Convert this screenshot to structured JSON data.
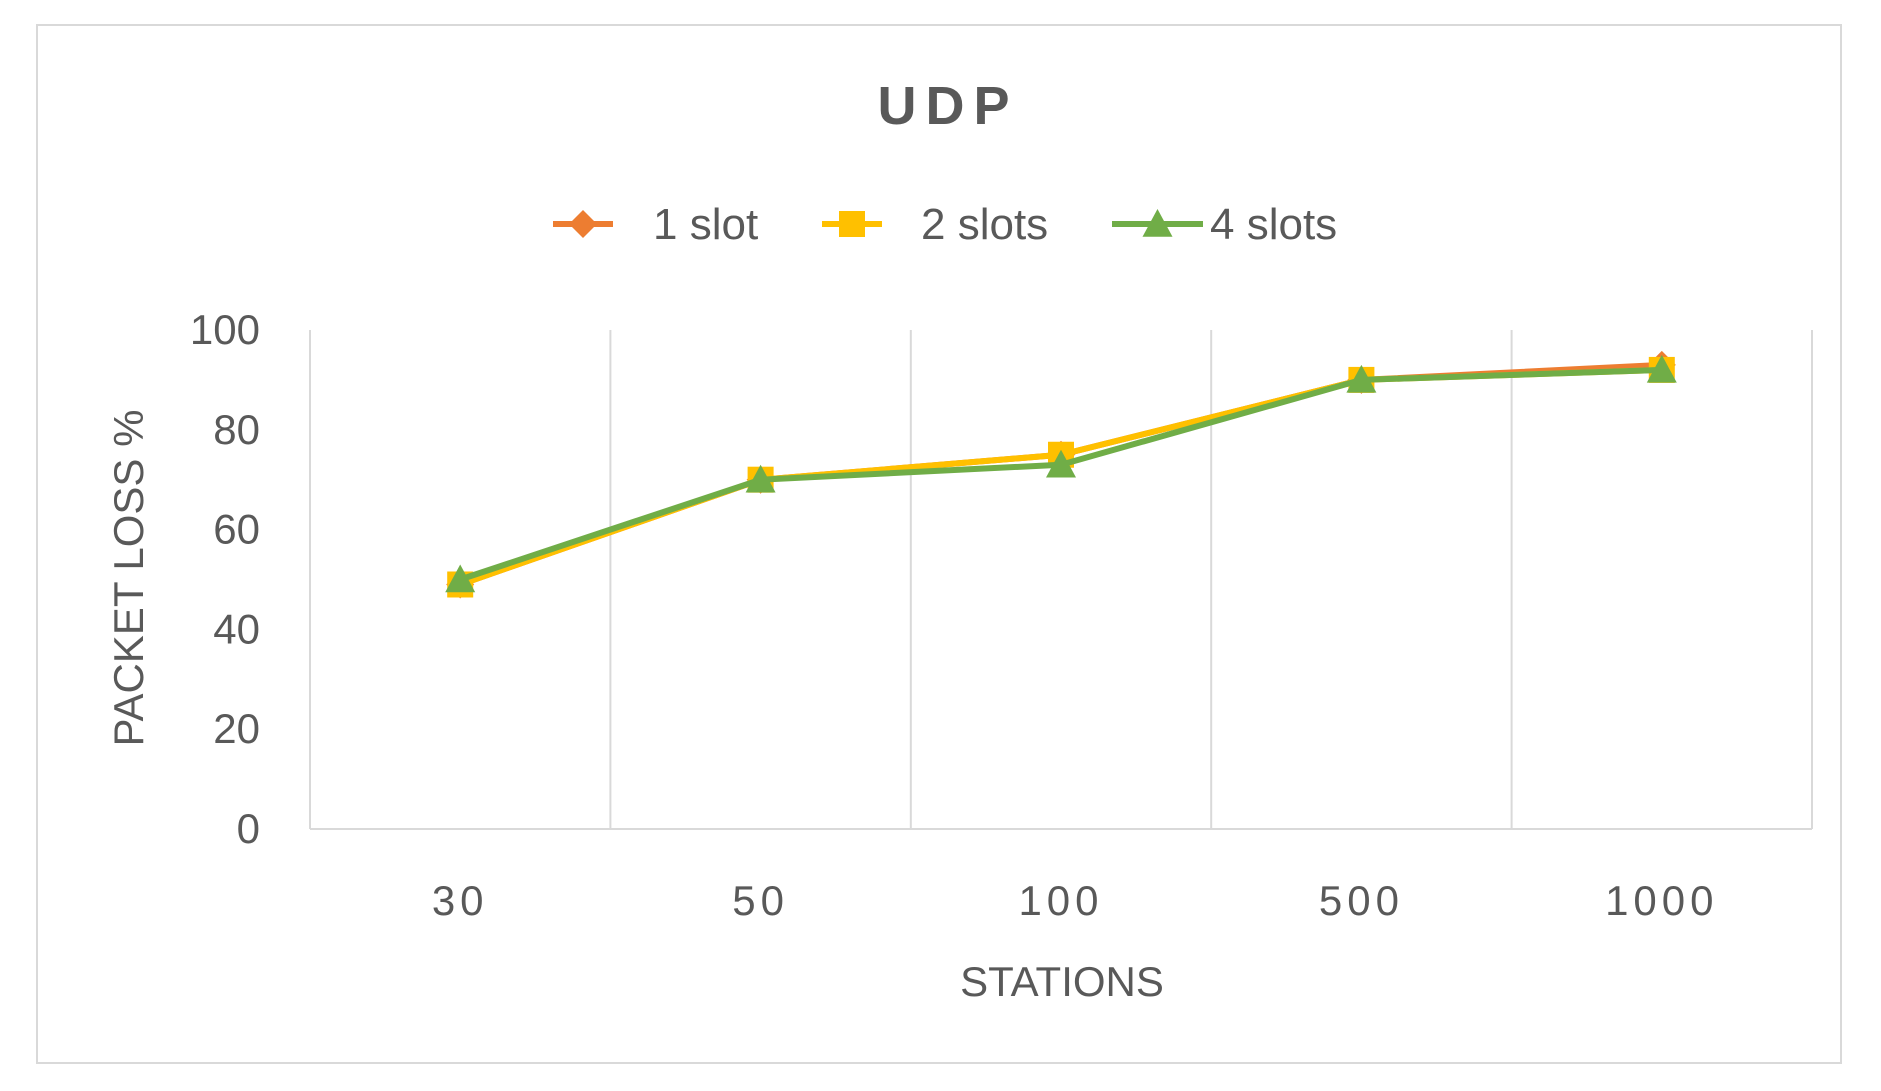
{
  "chart_data": {
    "type": "line",
    "title": "UDP",
    "xlabel": "STATIONS",
    "ylabel": "PACKET LOSS %",
    "categories": [
      "30",
      "50",
      "100",
      "500",
      "1000"
    ],
    "yticks": [
      "0",
      "20",
      "40",
      "60",
      "80",
      "100"
    ],
    "ylim": [
      0,
      100
    ],
    "grid": "vertical",
    "legend_position": "top",
    "series": [
      {
        "name": "1 slot",
        "values": [
          49,
          70,
          75,
          90,
          93
        ],
        "color": "#ED7D31",
        "marker": "diamond"
      },
      {
        "name": "2 slots",
        "values": [
          49,
          70,
          75,
          90,
          92
        ],
        "color": "#FFC000",
        "marker": "square"
      },
      {
        "name": "4 slots",
        "values": [
          50,
          70,
          73,
          90,
          92
        ],
        "color": "#70AD47",
        "marker": "triangle"
      }
    ]
  }
}
